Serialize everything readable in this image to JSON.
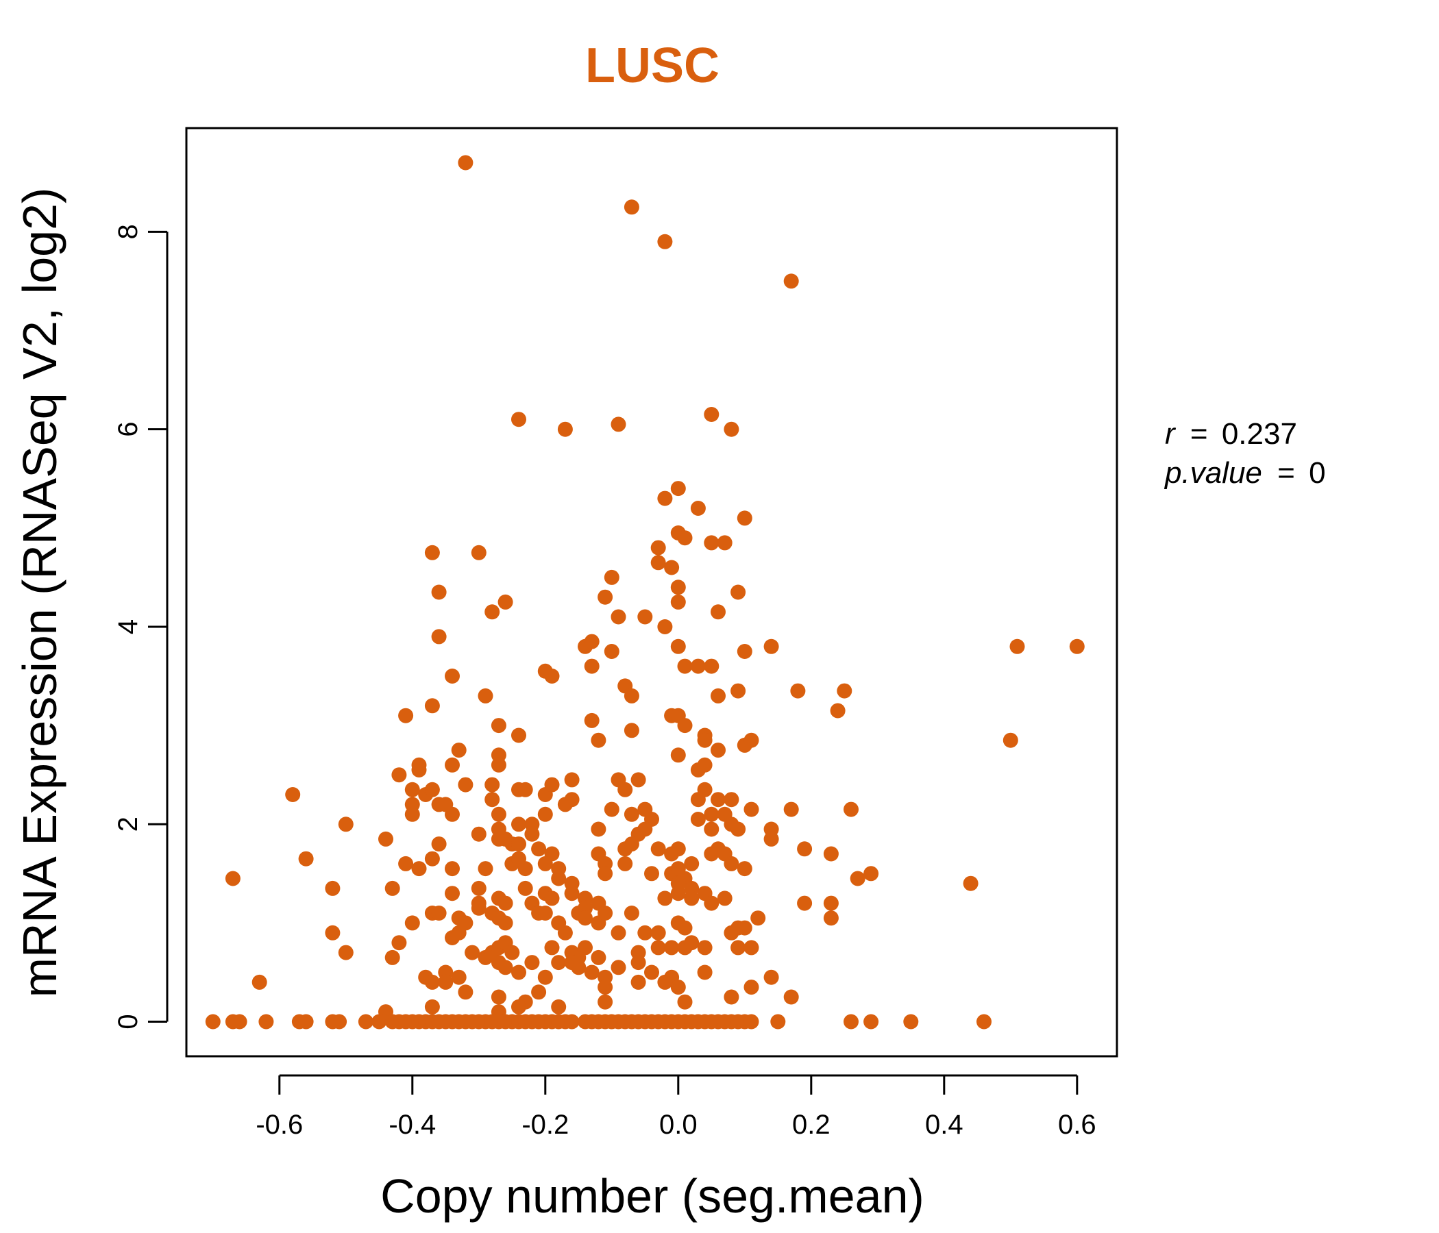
{
  "chart_data": {
    "type": "scatter",
    "title": "LUSC",
    "xlabel": "Copy number (seg.mean)",
    "ylabel": "mRNA Expression (RNASeq V2, log2)",
    "xlim": [
      -0.74,
      0.66
    ],
    "ylim": [
      -0.35,
      9.05
    ],
    "x_ticks": [
      -0.6,
      -0.4,
      -0.2,
      0.0,
      0.2,
      0.4,
      0.6
    ],
    "x_tick_labels": [
      "-0.6",
      "-0.4",
      "-0.2",
      "0.0",
      "0.2",
      "0.4",
      "0.6"
    ],
    "y_ticks": [
      0,
      2,
      4,
      6,
      8
    ],
    "y_tick_labels": [
      "0",
      "2",
      "4",
      "6",
      "8"
    ],
    "point_color": "#D95F0E",
    "grid": false,
    "legend": "none",
    "annotations": {
      "r_label": "r",
      "r_value": "0.237",
      "p_label": "p.value",
      "p_value": "0",
      "equals": "="
    },
    "points": [
      [
        -0.32,
        8.7
      ],
      [
        -0.07,
        8.25
      ],
      [
        -0.02,
        7.9
      ],
      [
        0.17,
        7.5
      ],
      [
        -0.24,
        6.1
      ],
      [
        -0.17,
        6.0
      ],
      [
        -0.09,
        6.05
      ],
      [
        0.05,
        6.15
      ],
      [
        0.08,
        6.0
      ],
      [
        -0.02,
        5.3
      ],
      [
        0.0,
        5.4
      ],
      [
        0.03,
        5.2
      ],
      [
        0.1,
        5.1
      ],
      [
        0.0,
        4.95
      ],
      [
        0.01,
        4.9
      ],
      [
        0.05,
        4.85
      ],
      [
        0.07,
        4.85
      ],
      [
        -0.03,
        4.8
      ],
      [
        -0.03,
        4.65
      ],
      [
        -0.01,
        4.6
      ],
      [
        -0.37,
        4.75
      ],
      [
        -0.3,
        4.75
      ],
      [
        -0.36,
        4.35
      ],
      [
        -0.26,
        4.25
      ],
      [
        -0.28,
        4.15
      ],
      [
        -0.11,
        4.3
      ],
      [
        -0.1,
        4.5
      ],
      [
        0.0,
        4.4
      ],
      [
        0.0,
        4.25
      ],
      [
        0.06,
        4.15
      ],
      [
        0.09,
        4.35
      ],
      [
        -0.09,
        4.1
      ],
      [
        -0.05,
        4.1
      ],
      [
        -0.02,
        4.0
      ],
      [
        0.0,
        3.8
      ],
      [
        -0.36,
        3.9
      ],
      [
        -0.14,
        3.8
      ],
      [
        -0.13,
        3.85
      ],
      [
        -0.1,
        3.75
      ],
      [
        0.14,
        3.8
      ],
      [
        0.1,
        3.75
      ],
      [
        0.51,
        3.8
      ],
      [
        0.6,
        3.8
      ],
      [
        -0.34,
        3.5
      ],
      [
        -0.2,
        3.55
      ],
      [
        -0.19,
        3.5
      ],
      [
        -0.13,
        3.6
      ],
      [
        0.01,
        3.6
      ],
      [
        0.03,
        3.6
      ],
      [
        0.05,
        3.6
      ],
      [
        -0.37,
        3.2
      ],
      [
        -0.29,
        3.3
      ],
      [
        -0.08,
        3.4
      ],
      [
        -0.07,
        3.3
      ],
      [
        0.06,
        3.3
      ],
      [
        0.09,
        3.35
      ],
      [
        0.18,
        3.35
      ],
      [
        0.25,
        3.35
      ],
      [
        0.24,
        3.15
      ],
      [
        -0.41,
        3.1
      ],
      [
        -0.27,
        3.0
      ],
      [
        -0.24,
        2.9
      ],
      [
        -0.13,
        3.05
      ],
      [
        -0.12,
        2.85
      ],
      [
        -0.07,
        2.95
      ],
      [
        -0.01,
        3.1
      ],
      [
        0.0,
        3.1
      ],
      [
        0.01,
        3.0
      ],
      [
        0.04,
        2.9
      ],
      [
        0.04,
        2.85
      ],
      [
        0.06,
        2.75
      ],
      [
        0.1,
        2.8
      ],
      [
        0.11,
        2.85
      ],
      [
        0.5,
        2.85
      ],
      [
        0.0,
        2.7
      ],
      [
        0.03,
        2.55
      ],
      [
        0.04,
        2.6
      ],
      [
        -0.33,
        2.75
      ],
      [
        -0.34,
        2.6
      ],
      [
        -0.27,
        2.7
      ],
      [
        -0.27,
        2.6
      ],
      [
        -0.42,
        2.5
      ],
      [
        -0.39,
        2.55
      ],
      [
        -0.39,
        2.6
      ],
      [
        -0.4,
        2.35
      ],
      [
        -0.38,
        2.3
      ],
      [
        -0.37,
        2.35
      ],
      [
        -0.32,
        2.4
      ],
      [
        -0.28,
        2.4
      ],
      [
        -0.24,
        2.35
      ],
      [
        -0.23,
        2.35
      ],
      [
        -0.2,
        2.3
      ],
      [
        -0.19,
        2.4
      ],
      [
        -0.16,
        2.45
      ],
      [
        -0.16,
        2.25
      ],
      [
        -0.09,
        2.45
      ],
      [
        -0.08,
        2.35
      ],
      [
        -0.06,
        2.45
      ],
      [
        0.04,
        2.35
      ],
      [
        0.06,
        2.25
      ],
      [
        0.08,
        2.25
      ],
      [
        -0.58,
        2.3
      ],
      [
        -0.4,
        2.2
      ],
      [
        -0.36,
        2.2
      ],
      [
        -0.35,
        2.2
      ],
      [
        -0.4,
        2.1
      ],
      [
        -0.34,
        2.1
      ],
      [
        -0.28,
        2.25
      ],
      [
        -0.27,
        2.1
      ],
      [
        -0.2,
        2.1
      ],
      [
        -0.17,
        2.2
      ],
      [
        -0.1,
        2.15
      ],
      [
        -0.07,
        2.1
      ],
      [
        -0.05,
        2.15
      ],
      [
        -0.04,
        2.05
      ],
      [
        0.03,
        2.25
      ],
      [
        0.03,
        2.05
      ],
      [
        0.05,
        2.1
      ],
      [
        0.07,
        2.1
      ],
      [
        0.08,
        2.0
      ],
      [
        0.11,
        2.15
      ],
      [
        0.17,
        2.15
      ],
      [
        0.26,
        2.15
      ],
      [
        -0.5,
        2.0
      ],
      [
        -0.24,
        2.0
      ],
      [
        -0.22,
        2.0
      ],
      [
        -0.27,
        1.95
      ],
      [
        -0.22,
        1.9
      ],
      [
        -0.12,
        1.95
      ],
      [
        -0.05,
        1.95
      ],
      [
        -0.06,
        1.9
      ],
      [
        0.05,
        1.95
      ],
      [
        0.09,
        1.95
      ],
      [
        0.14,
        1.95
      ],
      [
        0.14,
        1.85
      ],
      [
        -0.44,
        1.85
      ],
      [
        -0.36,
        1.8
      ],
      [
        -0.3,
        1.9
      ],
      [
        -0.27,
        1.85
      ],
      [
        -0.26,
        1.85
      ],
      [
        -0.25,
        1.8
      ],
      [
        -0.24,
        1.8
      ],
      [
        -0.21,
        1.75
      ],
      [
        -0.19,
        1.7
      ],
      [
        -0.12,
        1.7
      ],
      [
        -0.08,
        1.75
      ],
      [
        -0.07,
        1.8
      ],
      [
        -0.03,
        1.75
      ],
      [
        -0.01,
        1.7
      ],
      [
        0.0,
        1.75
      ],
      [
        0.02,
        1.6
      ],
      [
        0.05,
        1.7
      ],
      [
        0.06,
        1.75
      ],
      [
        0.07,
        1.7
      ],
      [
        0.08,
        1.6
      ],
      [
        0.1,
        1.55
      ],
      [
        0.19,
        1.75
      ],
      [
        0.23,
        1.7
      ],
      [
        -0.56,
        1.65
      ],
      [
        -0.41,
        1.6
      ],
      [
        -0.39,
        1.55
      ],
      [
        -0.37,
        1.65
      ],
      [
        -0.34,
        1.55
      ],
      [
        -0.29,
        1.55
      ],
      [
        -0.25,
        1.6
      ],
      [
        -0.24,
        1.65
      ],
      [
        -0.23,
        1.55
      ],
      [
        -0.2,
        1.6
      ],
      [
        -0.18,
        1.55
      ],
      [
        -0.18,
        1.45
      ],
      [
        -0.16,
        1.4
      ],
      [
        -0.11,
        1.6
      ],
      [
        -0.11,
        1.5
      ],
      [
        -0.08,
        1.6
      ],
      [
        -0.04,
        1.5
      ],
      [
        -0.01,
        1.5
      ],
      [
        0.0,
        1.55
      ],
      [
        0.01,
        1.45
      ],
      [
        0.0,
        1.4
      ],
      [
        0.02,
        1.35
      ],
      [
        0.27,
        1.45
      ],
      [
        0.29,
        1.5
      ],
      [
        -0.67,
        1.45
      ],
      [
        -0.52,
        1.35
      ],
      [
        -0.43,
        1.35
      ],
      [
        -0.34,
        1.3
      ],
      [
        -0.3,
        1.35
      ],
      [
        -0.3,
        1.2
      ],
      [
        -0.27,
        1.25
      ],
      [
        -0.26,
        1.2
      ],
      [
        -0.23,
        1.35
      ],
      [
        -0.22,
        1.2
      ],
      [
        -0.2,
        1.3
      ],
      [
        -0.19,
        1.25
      ],
      [
        -0.16,
        1.3
      ],
      [
        -0.14,
        1.25
      ],
      [
        -0.14,
        1.15
      ],
      [
        -0.12,
        1.2
      ],
      [
        -0.02,
        1.25
      ],
      [
        0.0,
        1.3
      ],
      [
        0.02,
        1.25
      ],
      [
        0.04,
        1.3
      ],
      [
        0.05,
        1.2
      ],
      [
        0.07,
        1.25
      ],
      [
        0.19,
        1.2
      ],
      [
        0.23,
        1.2
      ],
      [
        0.44,
        1.4
      ],
      [
        -0.4,
        1.0
      ],
      [
        -0.37,
        1.1
      ],
      [
        -0.36,
        1.1
      ],
      [
        -0.33,
        1.05
      ],
      [
        -0.32,
        1.0
      ],
      [
        -0.3,
        1.15
      ],
      [
        -0.28,
        1.1
      ],
      [
        -0.27,
        1.05
      ],
      [
        -0.26,
        1.0
      ],
      [
        -0.21,
        1.1
      ],
      [
        -0.2,
        1.1
      ],
      [
        -0.18,
        1.0
      ],
      [
        -0.15,
        1.1
      ],
      [
        -0.14,
        1.05
      ],
      [
        -0.12,
        1.0
      ],
      [
        -0.11,
        1.1
      ],
      [
        -0.07,
        1.1
      ],
      [
        -0.05,
        0.9
      ],
      [
        -0.03,
        0.9
      ],
      [
        0.0,
        1.0
      ],
      [
        0.01,
        0.95
      ],
      [
        0.08,
        0.9
      ],
      [
        0.09,
        0.95
      ],
      [
        0.1,
        0.95
      ],
      [
        0.12,
        1.05
      ],
      [
        0.23,
        1.05
      ],
      [
        -0.52,
        0.9
      ],
      [
        -0.5,
        0.7
      ],
      [
        -0.42,
        0.8
      ],
      [
        -0.34,
        0.85
      ],
      [
        -0.33,
        0.9
      ],
      [
        -0.31,
        0.7
      ],
      [
        -0.29,
        0.65
      ],
      [
        -0.28,
        0.7
      ],
      [
        -0.27,
        0.75
      ],
      [
        -0.26,
        0.8
      ],
      [
        -0.25,
        0.7
      ],
      [
        -0.22,
        0.6
      ],
      [
        -0.19,
        0.75
      ],
      [
        -0.17,
        0.9
      ],
      [
        -0.16,
        0.7
      ],
      [
        -0.15,
        0.65
      ],
      [
        -0.14,
        0.75
      ],
      [
        -0.12,
        0.65
      ],
      [
        -0.09,
        0.9
      ],
      [
        -0.06,
        0.7
      ],
      [
        -0.03,
        0.75
      ],
      [
        -0.01,
        0.75
      ],
      [
        0.01,
        0.75
      ],
      [
        0.02,
        0.8
      ],
      [
        0.04,
        0.75
      ],
      [
        0.09,
        0.75
      ],
      [
        0.11,
        0.75
      ],
      [
        -0.43,
        0.65
      ],
      [
        -0.35,
        0.5
      ],
      [
        -0.33,
        0.45
      ],
      [
        -0.27,
        0.6
      ],
      [
        -0.26,
        0.55
      ],
      [
        -0.24,
        0.5
      ],
      [
        -0.2,
        0.45
      ],
      [
        -0.18,
        0.6
      ],
      [
        -0.16,
        0.6
      ],
      [
        -0.15,
        0.55
      ],
      [
        -0.13,
        0.5
      ],
      [
        -0.11,
        0.45
      ],
      [
        -0.09,
        0.55
      ],
      [
        -0.06,
        0.6
      ],
      [
        -0.04,
        0.5
      ],
      [
        -0.01,
        0.45
      ],
      [
        0.04,
        0.5
      ],
      [
        0.14,
        0.45
      ],
      [
        -0.63,
        0.4
      ],
      [
        -0.38,
        0.45
      ],
      [
        -0.37,
        0.4
      ],
      [
        -0.35,
        0.4
      ],
      [
        -0.32,
        0.3
      ],
      [
        -0.27,
        0.25
      ],
      [
        -0.23,
        0.2
      ],
      [
        -0.21,
        0.3
      ],
      [
        -0.18,
        0.15
      ],
      [
        -0.11,
        0.35
      ],
      [
        -0.11,
        0.2
      ],
      [
        -0.06,
        0.4
      ],
      [
        -0.02,
        0.4
      ],
      [
        0.0,
        0.35
      ],
      [
        0.01,
        0.2
      ],
      [
        0.08,
        0.25
      ],
      [
        0.11,
        0.35
      ],
      [
        0.17,
        0.25
      ],
      [
        -0.44,
        0.1
      ],
      [
        -0.37,
        0.15
      ],
      [
        -0.27,
        0.1
      ],
      [
        -0.24,
        0.15
      ],
      [
        -0.7,
        0.0
      ],
      [
        -0.67,
        0.0
      ],
      [
        -0.66,
        0.0
      ],
      [
        -0.62,
        0.0
      ],
      [
        -0.57,
        0.0
      ],
      [
        -0.56,
        0.0
      ],
      [
        -0.52,
        0.0
      ],
      [
        -0.51,
        0.0
      ],
      [
        -0.47,
        0.0
      ],
      [
        -0.45,
        0.0
      ],
      [
        -0.43,
        0.0
      ],
      [
        -0.42,
        0.0
      ],
      [
        -0.41,
        0.0
      ],
      [
        -0.4,
        0.0
      ],
      [
        -0.39,
        0.0
      ],
      [
        -0.38,
        0.0
      ],
      [
        -0.37,
        0.0
      ],
      [
        -0.36,
        0.0
      ],
      [
        -0.35,
        0.0
      ],
      [
        -0.34,
        0.0
      ],
      [
        -0.33,
        0.0
      ],
      [
        -0.32,
        0.0
      ],
      [
        -0.31,
        0.0
      ],
      [
        -0.3,
        0.0
      ],
      [
        -0.29,
        0.0
      ],
      [
        -0.28,
        0.0
      ],
      [
        -0.27,
        0.0
      ],
      [
        -0.26,
        0.0
      ],
      [
        -0.25,
        0.0
      ],
      [
        -0.24,
        0.0
      ],
      [
        -0.23,
        0.0
      ],
      [
        -0.22,
        0.0
      ],
      [
        -0.21,
        0.0
      ],
      [
        -0.2,
        0.0
      ],
      [
        -0.19,
        0.0
      ],
      [
        -0.18,
        0.0
      ],
      [
        -0.17,
        0.0
      ],
      [
        -0.16,
        0.0
      ],
      [
        -0.14,
        0.0
      ],
      [
        -0.13,
        0.0
      ],
      [
        -0.12,
        0.0
      ],
      [
        -0.11,
        0.0
      ],
      [
        -0.1,
        0.0
      ],
      [
        -0.09,
        0.0
      ],
      [
        -0.08,
        0.0
      ],
      [
        -0.07,
        0.0
      ],
      [
        -0.06,
        0.0
      ],
      [
        -0.05,
        0.0
      ],
      [
        -0.04,
        0.0
      ],
      [
        -0.03,
        0.0
      ],
      [
        -0.02,
        0.0
      ],
      [
        -0.01,
        0.0
      ],
      [
        0.0,
        0.0
      ],
      [
        0.01,
        0.0
      ],
      [
        0.02,
        0.0
      ],
      [
        0.03,
        0.0
      ],
      [
        0.04,
        0.0
      ],
      [
        0.05,
        0.0
      ],
      [
        0.06,
        0.0
      ],
      [
        0.07,
        0.0
      ],
      [
        0.08,
        0.0
      ],
      [
        0.09,
        0.0
      ],
      [
        0.1,
        0.0
      ],
      [
        0.11,
        0.0
      ],
      [
        0.15,
        0.0
      ],
      [
        0.26,
        0.0
      ],
      [
        0.29,
        0.0
      ],
      [
        0.35,
        0.0
      ],
      [
        0.46,
        0.0
      ]
    ]
  }
}
